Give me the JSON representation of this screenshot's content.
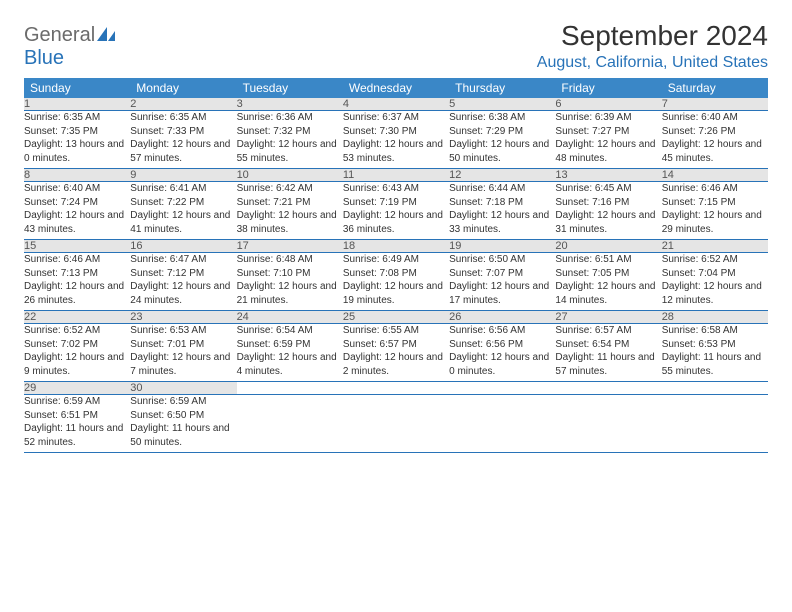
{
  "logo": {
    "part1": "General",
    "part2": "Blue"
  },
  "title": "September 2024",
  "location": "August, California, United States",
  "colors": {
    "header_bg": "#3a87c7",
    "accent": "#2873b8",
    "daynum_bg": "#e5e5e5",
    "text": "#333333",
    "logo_gray": "#6b6b6b"
  },
  "day_headers": [
    "Sunday",
    "Monday",
    "Tuesday",
    "Wednesday",
    "Thursday",
    "Friday",
    "Saturday"
  ],
  "weeks": [
    {
      "nums": [
        "1",
        "2",
        "3",
        "4",
        "5",
        "6",
        "7"
      ],
      "cells": [
        {
          "sr": "Sunrise: 6:35 AM",
          "ss": "Sunset: 7:35 PM",
          "dl": "Daylight: 13 hours and 0 minutes."
        },
        {
          "sr": "Sunrise: 6:35 AM",
          "ss": "Sunset: 7:33 PM",
          "dl": "Daylight: 12 hours and 57 minutes."
        },
        {
          "sr": "Sunrise: 6:36 AM",
          "ss": "Sunset: 7:32 PM",
          "dl": "Daylight: 12 hours and 55 minutes."
        },
        {
          "sr": "Sunrise: 6:37 AM",
          "ss": "Sunset: 7:30 PM",
          "dl": "Daylight: 12 hours and 53 minutes."
        },
        {
          "sr": "Sunrise: 6:38 AM",
          "ss": "Sunset: 7:29 PM",
          "dl": "Daylight: 12 hours and 50 minutes."
        },
        {
          "sr": "Sunrise: 6:39 AM",
          "ss": "Sunset: 7:27 PM",
          "dl": "Daylight: 12 hours and 48 minutes."
        },
        {
          "sr": "Sunrise: 6:40 AM",
          "ss": "Sunset: 7:26 PM",
          "dl": "Daylight: 12 hours and 45 minutes."
        }
      ]
    },
    {
      "nums": [
        "8",
        "9",
        "10",
        "11",
        "12",
        "13",
        "14"
      ],
      "cells": [
        {
          "sr": "Sunrise: 6:40 AM",
          "ss": "Sunset: 7:24 PM",
          "dl": "Daylight: 12 hours and 43 minutes."
        },
        {
          "sr": "Sunrise: 6:41 AM",
          "ss": "Sunset: 7:22 PM",
          "dl": "Daylight: 12 hours and 41 minutes."
        },
        {
          "sr": "Sunrise: 6:42 AM",
          "ss": "Sunset: 7:21 PM",
          "dl": "Daylight: 12 hours and 38 minutes."
        },
        {
          "sr": "Sunrise: 6:43 AM",
          "ss": "Sunset: 7:19 PM",
          "dl": "Daylight: 12 hours and 36 minutes."
        },
        {
          "sr": "Sunrise: 6:44 AM",
          "ss": "Sunset: 7:18 PM",
          "dl": "Daylight: 12 hours and 33 minutes."
        },
        {
          "sr": "Sunrise: 6:45 AM",
          "ss": "Sunset: 7:16 PM",
          "dl": "Daylight: 12 hours and 31 minutes."
        },
        {
          "sr": "Sunrise: 6:46 AM",
          "ss": "Sunset: 7:15 PM",
          "dl": "Daylight: 12 hours and 29 minutes."
        }
      ]
    },
    {
      "nums": [
        "15",
        "16",
        "17",
        "18",
        "19",
        "20",
        "21"
      ],
      "cells": [
        {
          "sr": "Sunrise: 6:46 AM",
          "ss": "Sunset: 7:13 PM",
          "dl": "Daylight: 12 hours and 26 minutes."
        },
        {
          "sr": "Sunrise: 6:47 AM",
          "ss": "Sunset: 7:12 PM",
          "dl": "Daylight: 12 hours and 24 minutes."
        },
        {
          "sr": "Sunrise: 6:48 AM",
          "ss": "Sunset: 7:10 PM",
          "dl": "Daylight: 12 hours and 21 minutes."
        },
        {
          "sr": "Sunrise: 6:49 AM",
          "ss": "Sunset: 7:08 PM",
          "dl": "Daylight: 12 hours and 19 minutes."
        },
        {
          "sr": "Sunrise: 6:50 AM",
          "ss": "Sunset: 7:07 PM",
          "dl": "Daylight: 12 hours and 17 minutes."
        },
        {
          "sr": "Sunrise: 6:51 AM",
          "ss": "Sunset: 7:05 PM",
          "dl": "Daylight: 12 hours and 14 minutes."
        },
        {
          "sr": "Sunrise: 6:52 AM",
          "ss": "Sunset: 7:04 PM",
          "dl": "Daylight: 12 hours and 12 minutes."
        }
      ]
    },
    {
      "nums": [
        "22",
        "23",
        "24",
        "25",
        "26",
        "27",
        "28"
      ],
      "cells": [
        {
          "sr": "Sunrise: 6:52 AM",
          "ss": "Sunset: 7:02 PM",
          "dl": "Daylight: 12 hours and 9 minutes."
        },
        {
          "sr": "Sunrise: 6:53 AM",
          "ss": "Sunset: 7:01 PM",
          "dl": "Daylight: 12 hours and 7 minutes."
        },
        {
          "sr": "Sunrise: 6:54 AM",
          "ss": "Sunset: 6:59 PM",
          "dl": "Daylight: 12 hours and 4 minutes."
        },
        {
          "sr": "Sunrise: 6:55 AM",
          "ss": "Sunset: 6:57 PM",
          "dl": "Daylight: 12 hours and 2 minutes."
        },
        {
          "sr": "Sunrise: 6:56 AM",
          "ss": "Sunset: 6:56 PM",
          "dl": "Daylight: 12 hours and 0 minutes."
        },
        {
          "sr": "Sunrise: 6:57 AM",
          "ss": "Sunset: 6:54 PM",
          "dl": "Daylight: 11 hours and 57 minutes."
        },
        {
          "sr": "Sunrise: 6:58 AM",
          "ss": "Sunset: 6:53 PM",
          "dl": "Daylight: 11 hours and 55 minutes."
        }
      ]
    },
    {
      "nums": [
        "29",
        "30",
        "",
        "",
        "",
        "",
        ""
      ],
      "cells": [
        {
          "sr": "Sunrise: 6:59 AM",
          "ss": "Sunset: 6:51 PM",
          "dl": "Daylight: 11 hours and 52 minutes."
        },
        {
          "sr": "Sunrise: 6:59 AM",
          "ss": "Sunset: 6:50 PM",
          "dl": "Daylight: 11 hours and 50 minutes."
        },
        null,
        null,
        null,
        null,
        null
      ]
    }
  ]
}
